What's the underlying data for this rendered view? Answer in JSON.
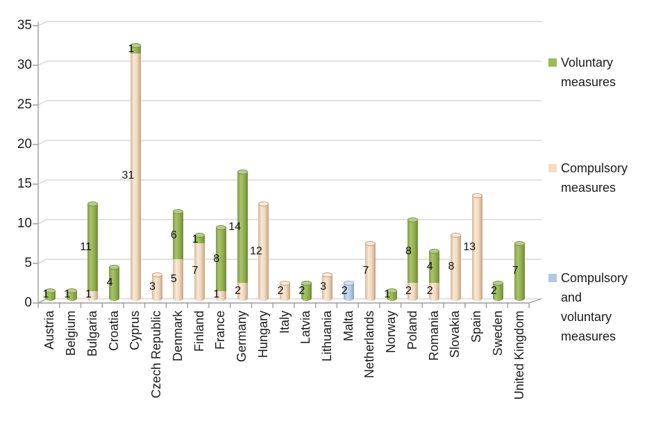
{
  "chart_data": {
    "type": "bar",
    "subtype": "stacked-3d-cylinder",
    "title": "",
    "xlabel": "",
    "ylabel": "",
    "categories": [
      "Austria",
      "Belgium",
      "Bulgaria",
      "Croatia",
      "Cyprus",
      "Czech Republic",
      "Denmark",
      "Finland",
      "France",
      "Germany",
      "Hungary",
      "Italy",
      "Latvia",
      "Lithuania",
      "Malta",
      "Netherlands",
      "Norway",
      "Poland",
      "Romania",
      "Slovakia",
      "Spain",
      "Sweden",
      "United Kingdom"
    ],
    "series": [
      {
        "name": "Voluntary measures",
        "color": "#9bbb59",
        "values": [
          1,
          1,
          11,
          4,
          1,
          0,
          6,
          1,
          8,
          14,
          0,
          0,
          2,
          0,
          0,
          0,
          1,
          8,
          4,
          0,
          0,
          2,
          7
        ]
      },
      {
        "name": "Compulsory measures",
        "color": "#f5dcc0",
        "values": [
          0,
          0,
          1,
          0,
          31,
          3,
          5,
          7,
          1,
          2,
          12,
          2,
          0,
          3,
          0,
          7,
          0,
          2,
          2,
          8,
          13,
          0,
          0
        ]
      },
      {
        "name": "Compulsory and voluntary measures",
        "color": "#b3c9e2",
        "values": [
          0,
          0,
          0,
          0,
          0,
          0,
          0,
          0,
          0,
          0,
          0,
          0,
          0,
          0,
          2,
          0,
          0,
          0,
          0,
          0,
          0,
          0,
          0
        ]
      }
    ],
    "stack_order_bottom_to_top": [
      "Compulsory measures",
      "Voluntary measures",
      "Compulsory and voluntary measures"
    ],
    "ylim": [
      0,
      35
    ],
    "yticks": [
      0,
      5,
      10,
      15,
      20,
      25,
      30,
      35
    ],
    "grid": true,
    "data_labels": true,
    "legend_position": "right"
  },
  "legend": {
    "items": [
      {
        "label": "Voluntary measures",
        "color": "#9bbb59"
      },
      {
        "label": "Compulsory measures",
        "color": "#f5dcc0"
      },
      {
        "label": "Compulsory and voluntary measures",
        "color": "#b3c9e2"
      }
    ]
  },
  "colors": {
    "axis": "#9c9c9c",
    "gridline": "#d2cfcf",
    "background": "#ffffff",
    "label_text": "#1a1a1a"
  }
}
